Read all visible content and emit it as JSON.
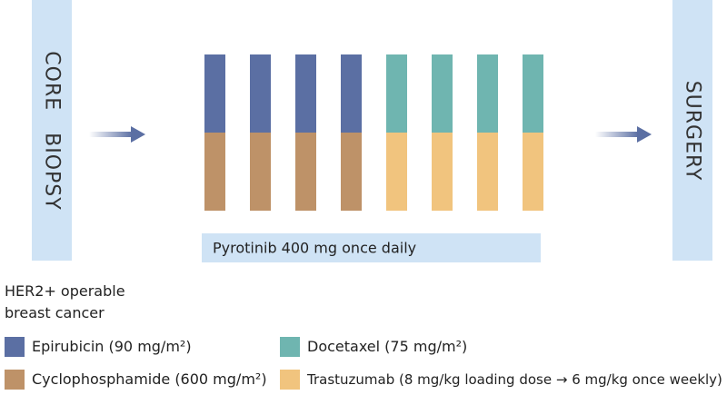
{
  "left_box": {
    "label": "CORE   BIOPSY"
  },
  "right_box": {
    "label": "SURGERY"
  },
  "pyrotinib_band": {
    "label": "Pyrotinib 400 mg once daily"
  },
  "population": {
    "line1": "HER2+ operable",
    "line2": "breast cancer"
  },
  "cycles": [
    {
      "top": "epirubicin",
      "bottom": "cyclophosphamide"
    },
    {
      "top": "epirubicin",
      "bottom": "cyclophosphamide"
    },
    {
      "top": "epirubicin",
      "bottom": "cyclophosphamide"
    },
    {
      "top": "epirubicin",
      "bottom": "cyclophosphamide"
    },
    {
      "top": "docetaxel",
      "bottom": "trastuzumab"
    },
    {
      "top": "docetaxel",
      "bottom": "trastuzumab"
    },
    {
      "top": "docetaxel",
      "bottom": "trastuzumab"
    },
    {
      "top": "docetaxel",
      "bottom": "trastuzumab"
    }
  ],
  "legend": {
    "epirubicin": {
      "label": "Epirubicin (90 mg/m²)",
      "color": "#5b6fa3"
    },
    "docetaxel": {
      "label": "Docetaxel (75 mg/m²)",
      "color": "#6fb5b0"
    },
    "cyclophosphamide": {
      "label": "Cyclophosphamide (600 mg/m²)",
      "color": "#be9268"
    },
    "trastuzumab": {
      "label": "Trastuzumab (8 mg/kg loading dose → 6 mg/kg once weekly)",
      "color": "#f1c47e"
    }
  }
}
